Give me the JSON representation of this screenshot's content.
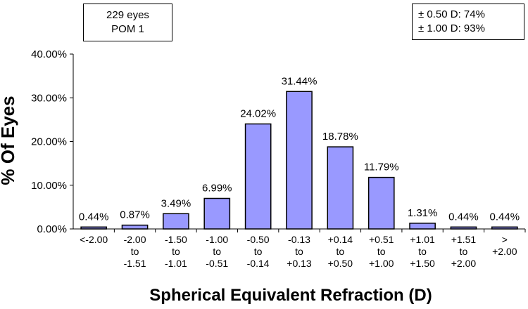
{
  "chart_data": {
    "type": "bar",
    "xlabel": "Spherical Equivalent Refraction (D)",
    "ylabel": "% Of Eyes",
    "ylim": [
      0,
      40
    ],
    "yticks": [
      "0.00%",
      "10.00%",
      "20.00%",
      "30.00%",
      "40.00%"
    ],
    "ytick_values": [
      0,
      10,
      20,
      30,
      40
    ],
    "categories": [
      [
        "<-2.00"
      ],
      [
        "-2.00",
        "to",
        "-1.51"
      ],
      [
        "-1.50",
        "to",
        "-1.01"
      ],
      [
        "-1.00",
        "to",
        "-0.51"
      ],
      [
        "-0.50",
        "to",
        "-0.14"
      ],
      [
        "-0.13",
        "to",
        "+0.13"
      ],
      [
        "+0.14",
        "to",
        "+0.50"
      ],
      [
        "+0.51",
        "to",
        "+1.00"
      ],
      [
        "+1.01",
        "to",
        "+1.50"
      ],
      [
        "+1.51",
        "to",
        "+2.00"
      ],
      [
        ">",
        "+2.00"
      ]
    ],
    "values": [
      0.44,
      0.87,
      3.49,
      6.99,
      24.02,
      31.44,
      18.78,
      11.79,
      1.31,
      0.44,
      0.44
    ],
    "data_labels": [
      "0.44%",
      "0.87%",
      "3.49%",
      "6.99%",
      "24.02%",
      "31.44%",
      "18.78%",
      "11.79%",
      "1.31%",
      "0.44%",
      "0.44%"
    ],
    "bar_color": "#9999ff",
    "grid": false
  },
  "info_left": {
    "line1": "229 eyes",
    "line2": "POM 1"
  },
  "info_right": {
    "line1": "± 0.50 D: 74%",
    "line2": "± 1.00 D: 93%"
  }
}
